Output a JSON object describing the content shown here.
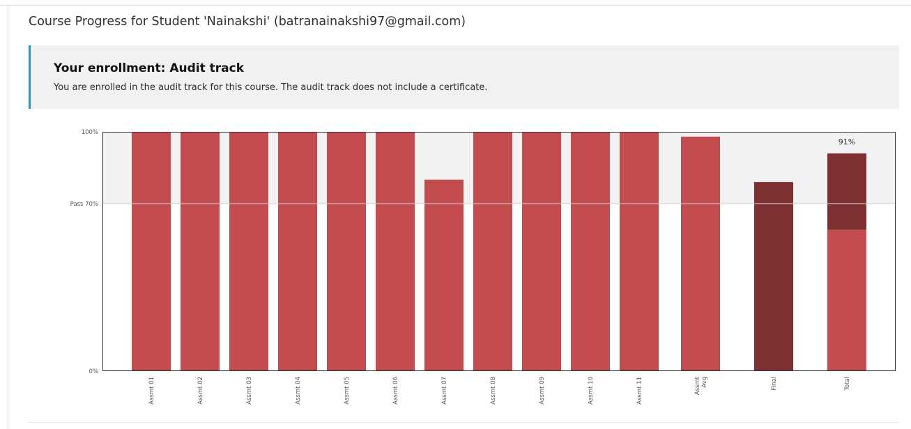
{
  "page": {
    "title": "Course Progress for Student 'Nainakshi' (batranainakshi97@gmail.com)"
  },
  "enrollment": {
    "title": "Your enrollment: Audit track",
    "message": "You are enrolled in the audit track for this course. The audit track does not include a certificate.",
    "accent_color": "#2d94d2"
  },
  "chart_data": {
    "type": "bar",
    "title": "",
    "xlabel": "",
    "ylabel": "",
    "ylim": [
      0,
      100
    ],
    "y_ticks": [
      {
        "value": 100,
        "label": "100%"
      },
      {
        "value": 70,
        "label": "Pass 70%"
      },
      {
        "value": 0,
        "label": "0%"
      }
    ],
    "pass_threshold": 70,
    "pass_band_color": "#f2f2f2",
    "categories": [
      "Assmt 01",
      "Assmt 02",
      "Assmt 03",
      "Assmt 04",
      "Assmt 05",
      "Assmt 06",
      "Assmt 07",
      "Assmt 08",
      "Assmt 09",
      "Assmt 10",
      "Assmt 11",
      "Assmt Avg",
      "Final",
      "Total"
    ],
    "values": [
      100,
      100,
      100,
      100,
      100,
      100,
      80,
      100,
      100,
      100,
      100,
      98,
      79,
      91
    ],
    "bar_colors": [
      "#c34c4f",
      "#c34c4f",
      "#c34c4f",
      "#c34c4f",
      "#c34c4f",
      "#c34c4f",
      "#c34c4f",
      "#c34c4f",
      "#c34c4f",
      "#c34c4f",
      "#c34c4f",
      "#c34c4f",
      "#7e3032",
      "#7e3032"
    ],
    "total_breakdown": {
      "assignments_part": 59,
      "final_part": 32
    },
    "data_labels": [
      {
        "category": "Total",
        "label": "91%"
      }
    ],
    "grid": false,
    "legend": "none"
  }
}
